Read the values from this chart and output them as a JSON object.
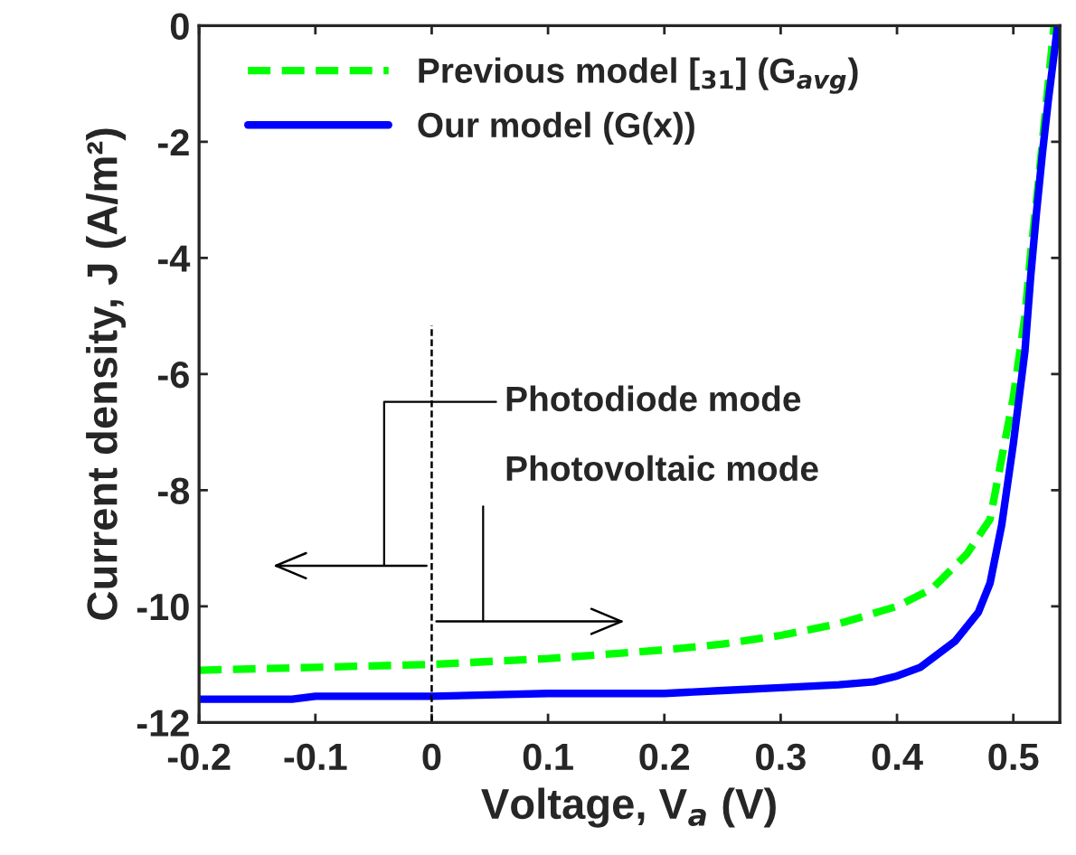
{
  "chart_data": {
    "type": "line",
    "xlabel": "Voltage, V$_{a}$ (V)",
    "ylabel": "Current density, J (A/m²)",
    "xlim": [
      -0.2,
      0.54
    ],
    "ylim": [
      -12,
      0
    ],
    "xticks": [
      {
        "value": -0.2,
        "label": "-0.2"
      },
      {
        "value": -0.1,
        "label": "-0.1"
      },
      0,
      0.1,
      0.2,
      0.3,
      0.4,
      0.5
    ],
    "yticks": [
      {
        "value": -12,
        "label": "-12"
      },
      {
        "value": -10,
        "label": "-10"
      },
      {
        "value": -8,
        "label": "-8"
      },
      {
        "value": -6,
        "label": "-6"
      },
      {
        "value": -4,
        "label": "-4"
      },
      {
        "value": -2,
        "label": "-2"
      },
      0
    ],
    "grid": false,
    "legend": "top left",
    "series": [
      {
        "name": "Previous model [$_{31}$] (G$_{avg}$)",
        "color": "#00ff00",
        "line_style": "dashed",
        "x": [
          -0.2,
          -0.1,
          0,
          0.1,
          0.2,
          0.25,
          0.3,
          0.35,
          0.4,
          0.43,
          0.46,
          0.48,
          0.5,
          0.51,
          0.515,
          0.52,
          0.525,
          0.53,
          0.535
        ],
        "values": [
          -11.1,
          -11.05,
          -11.0,
          -10.9,
          -10.75,
          -10.65,
          -10.5,
          -10.3,
          -10.0,
          -9.7,
          -9.1,
          -8.5,
          -6.4,
          -5.0,
          -3.9,
          -3.0,
          -2.0,
          -1.0,
          0
        ]
      },
      {
        "name": "Our model (G(x))",
        "color": "#0000ff",
        "line_style": "solid",
        "x": [
          -0.2,
          -0.12,
          -0.1,
          0,
          0.1,
          0.2,
          0.25,
          0.3,
          0.35,
          0.38,
          0.4,
          0.42,
          0.45,
          0.47,
          0.48,
          0.49,
          0.5,
          0.51,
          0.515,
          0.52,
          0.525,
          0.53,
          0.535,
          0.538
        ],
        "values": [
          -11.6,
          -11.6,
          -11.55,
          -11.55,
          -11.5,
          -11.5,
          -11.45,
          -11.4,
          -11.35,
          -11.3,
          -11.2,
          -11.05,
          -10.6,
          -10.1,
          -9.6,
          -8.6,
          -7.2,
          -5.6,
          -4.3,
          -3.2,
          -2.2,
          -1.3,
          -0.5,
          0
        ]
      }
    ],
    "ref_lines": [
      {
        "axis": "x",
        "value": 0,
        "line_style": "dashed",
        "color": "#000000"
      }
    ],
    "annotations": [
      "Photodiode mode",
      "Photovoltaic mode"
    ]
  }
}
